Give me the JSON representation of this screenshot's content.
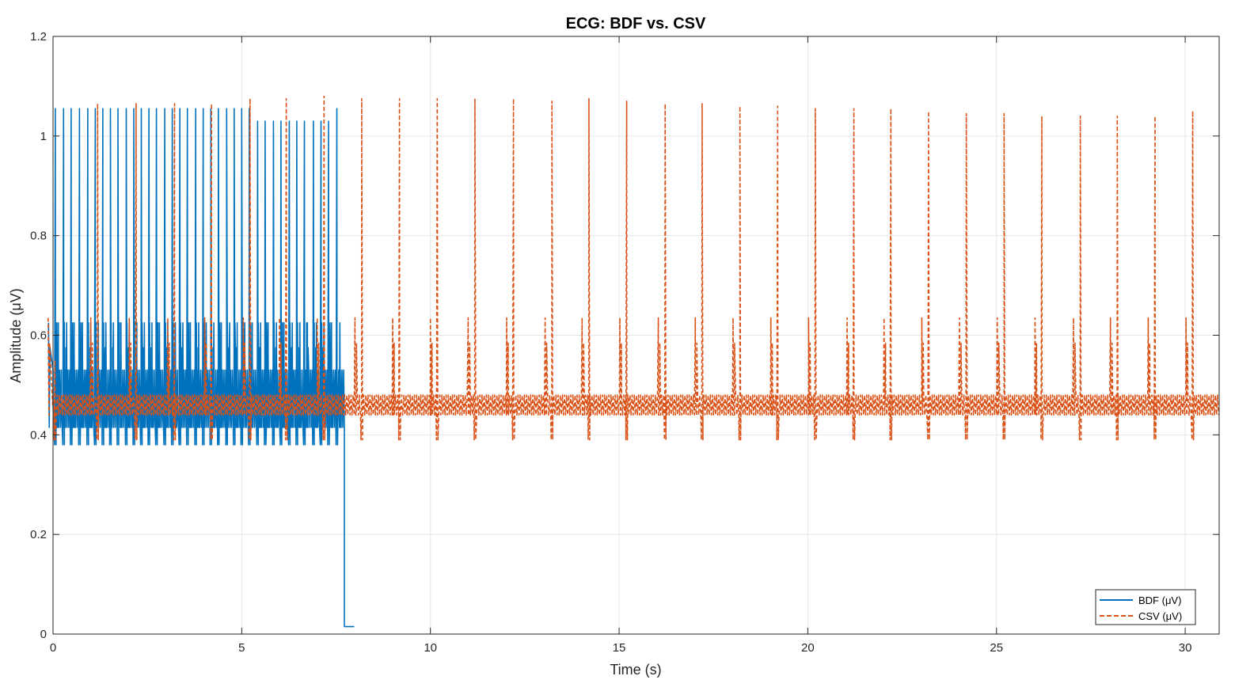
{
  "chart_data": {
    "type": "line",
    "title": "ECG: BDF vs. CSV",
    "xlabel": "Time (s)",
    "ylabel": "Amplitude (μV)",
    "xlim": [
      0,
      30.9
    ],
    "ylim": [
      0,
      1.2
    ],
    "xticks": [
      0,
      5,
      10,
      15,
      20,
      25,
      30
    ],
    "yticks": [
      0,
      0.2,
      0.4,
      0.6,
      0.8,
      1,
      1.2
    ],
    "xtick_labels": [
      "0",
      "5",
      "10",
      "15",
      "20",
      "25",
      "30"
    ],
    "ytick_labels": [
      "0",
      "0.2",
      "0.4",
      "0.6",
      "0.8",
      "1",
      "1.2"
    ],
    "grid": true,
    "legend_position": "bottom-right",
    "legend": [
      "BDF (μV)",
      "CSV (μV)"
    ],
    "series": [
      {
        "name": "BDF (μV)",
        "color": "#0072BD",
        "line_style": "solid",
        "baseline": 0.46,
        "baseline_band": [
          0.415,
          0.53
        ],
        "beat_times": [
          0.06,
          0.28,
          0.48,
          0.7,
          0.92,
          1.12,
          1.32,
          1.52,
          1.72,
          1.94,
          2.14,
          2.34,
          2.54,
          2.74,
          2.96,
          3.16,
          3.36,
          3.56,
          3.78,
          3.98,
          4.18,
          4.38,
          4.6,
          4.8,
          5.0,
          5.2,
          5.42,
          5.62,
          5.84,
          6.04,
          6.26,
          6.46,
          6.66,
          6.9,
          7.1,
          7.3,
          7.52
        ],
        "beat_peaks": [
          1.055,
          1.055,
          1.055,
          1.055,
          1.055,
          1.055,
          1.055,
          1.055,
          1.055,
          1.055,
          1.055,
          1.055,
          1.055,
          1.055,
          1.055,
          1.055,
          1.055,
          1.055,
          1.055,
          1.055,
          1.055,
          1.055,
          1.055,
          1.055,
          1.055,
          1.055,
          1.03,
          1.03,
          1.03,
          1.03,
          1.03,
          1.03,
          1.03,
          1.03,
          1.03,
          1.03,
          1.055
        ],
        "secondary_peak": 0.625,
        "trough": 0.38,
        "drop_time": 7.72,
        "drop_value": 0.015,
        "end_time": 7.98
      },
      {
        "name": "CSV (μV)",
        "color": "#D95319",
        "line_style": "dashed",
        "baseline": 0.46,
        "baseline_band": [
          0.44,
          0.48
        ],
        "beat_times": [
          0.05,
          1.18,
          2.2,
          3.22,
          4.2,
          5.22,
          6.18,
          7.18,
          8.18,
          9.18,
          10.18,
          11.18,
          12.2,
          13.22,
          14.2,
          15.2,
          16.22,
          17.2,
          18.2,
          19.2,
          20.2,
          21.22,
          22.2,
          23.2,
          24.2,
          25.2,
          26.2,
          27.22,
          28.2,
          29.2,
          30.2
        ],
        "beat_peaks": [
          0.55,
          1.065,
          1.065,
          1.065,
          1.065,
          1.075,
          1.075,
          1.08,
          1.075,
          1.075,
          1.075,
          1.075,
          1.075,
          1.07,
          1.075,
          1.07,
          1.065,
          1.065,
          1.06,
          1.06,
          1.055,
          1.055,
          1.055,
          1.05,
          1.045,
          1.045,
          1.04,
          1.04,
          1.04,
          1.04,
          1.05
        ],
        "secondary_peak": 0.635,
        "trough": 0.39,
        "end_time": 30.9
      }
    ]
  }
}
